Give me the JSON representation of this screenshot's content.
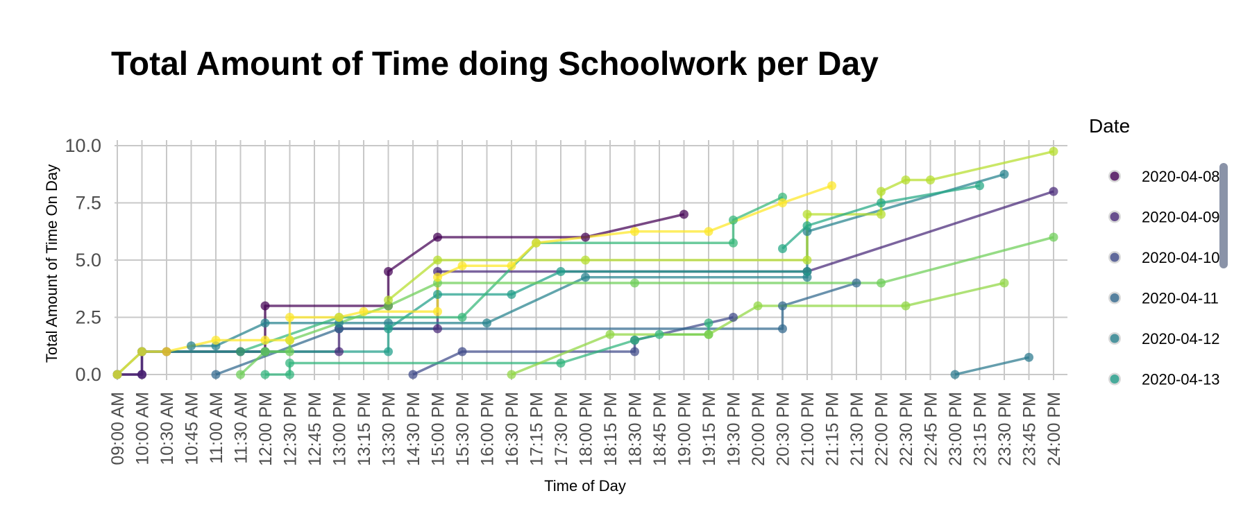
{
  "chart_data": {
    "type": "line",
    "title": "Total Amount of Time doing Schoolwork per Day",
    "xlabel": "Time of Day",
    "ylabel": "Total Amount of Time On Day",
    "ylim": [
      0,
      10
    ],
    "y_ticks": [
      "0.0",
      "2.5",
      "5.0",
      "7.5",
      "10.0"
    ],
    "grid": true,
    "categories": [
      "09:00 AM",
      "10:00 AM",
      "10:30 AM",
      "10:45 AM",
      "11:00 AM",
      "11:30 AM",
      "12:00 PM",
      "12:30 PM",
      "12:45 PM",
      "13:00 PM",
      "13:15 PM",
      "13:30 PM",
      "14:30 PM",
      "15:00 PM",
      "15:30 PM",
      "16:00 PM",
      "16:30 PM",
      "17:15 PM",
      "17:30 PM",
      "18:00 PM",
      "18:15 PM",
      "18:30 PM",
      "18:45 PM",
      "19:00 PM",
      "19:15 PM",
      "19:30 PM",
      "20:00 PM",
      "20:30 PM",
      "21:00 PM",
      "21:15 PM",
      "21:30 PM",
      "22:00 PM",
      "22:30 PM",
      "22:45 PM",
      "23:00 PM",
      "23:15 PM",
      "23:30 PM",
      "23:45 PM",
      "24:00 PM"
    ],
    "legend": {
      "title": "Date",
      "placement": "right",
      "entries": [
        "2020-04-08",
        "2020-04-09",
        "2020-04-10",
        "2020-04-11",
        "2020-04-12",
        "2020-04-13"
      ]
    },
    "series": [
      {
        "name": "2020-04-08",
        "color": "#440154",
        "points": [
          [
            "09:00 AM",
            0
          ],
          [
            "10:00 AM",
            0
          ],
          [
            "10:00 AM",
            1
          ],
          [
            "10:30 AM",
            1
          ],
          [
            "11:30 AM",
            1
          ],
          [
            "12:00 PM",
            1
          ],
          [
            "12:00 PM",
            3
          ],
          [
            "13:30 PM",
            3
          ],
          [
            "13:30 PM",
            4.5
          ],
          [
            "15:00 PM",
            6
          ],
          [
            "18:00 PM",
            6
          ],
          [
            "19:00 PM",
            7
          ]
        ]
      },
      {
        "name": "2020-04-09",
        "color": "#482878",
        "points": [
          [
            "09:00 AM",
            0
          ],
          [
            "10:00 AM",
            0
          ],
          [
            "10:00 AM",
            1
          ],
          [
            "13:00 PM",
            1
          ],
          [
            "13:00 PM",
            2
          ],
          [
            "15:00 PM",
            2
          ],
          [
            "15:00 PM",
            4.5
          ],
          [
            "21:00 PM",
            4.5
          ],
          [
            "24:00 PM",
            8
          ]
        ]
      },
      {
        "name": "2020-04-10",
        "color": "#3e4989",
        "points": [
          [
            "14:30 PM",
            0
          ],
          [
            "15:30 PM",
            1
          ],
          [
            "18:30 PM",
            1
          ],
          [
            "18:30 PM",
            1.5
          ],
          [
            "19:30 PM",
            2.5
          ]
        ]
      },
      {
        "name": "2020-04-11",
        "color": "#31688e",
        "points": [
          [
            "11:00 AM",
            0
          ],
          [
            "13:00 PM",
            2
          ],
          [
            "20:30 PM",
            2
          ],
          [
            "20:30 PM",
            3
          ],
          [
            "21:30 PM",
            4
          ]
        ]
      },
      {
        "name": "2020-04-12",
        "color": "#26828e",
        "points": [
          [
            "10:45 AM",
            1.25
          ],
          [
            "11:00 AM",
            1.25
          ],
          [
            "12:00 PM",
            2.25
          ],
          [
            "13:00 PM",
            2.25
          ],
          [
            "13:30 PM",
            2.25
          ],
          [
            "16:00 PM",
            2.25
          ],
          [
            "18:00 PM",
            4.25
          ],
          [
            "21:00 PM",
            4.25
          ],
          [
            "21:00 PM",
            6.25
          ],
          [
            "23:30 PM",
            8.75
          ]
        ]
      },
      {
        "name": "2020-04-13",
        "color": "#1f9e89",
        "points": [
          [
            "09:00 AM",
            0
          ],
          [
            "10:00 AM",
            1
          ],
          [
            "12:00 PM",
            1
          ],
          [
            "13:30 PM",
            1
          ],
          [
            "13:30 PM",
            2
          ],
          [
            "15:00 PM",
            3.5
          ],
          [
            "16:30 PM",
            3.5
          ],
          [
            "17:30 PM",
            4.5
          ],
          [
            "21:00 PM",
            4.5
          ]
        ]
      },
      {
        "name": "",
        "color": "#35b779",
        "points": [
          [
            "11:30 AM",
            1
          ],
          [
            "13:00 PM",
            2.5
          ],
          [
            "15:30 PM",
            2.5
          ],
          [
            "17:15 PM",
            5.75
          ],
          [
            "19:30 PM",
            5.75
          ],
          [
            "19:30 PM",
            6.75
          ],
          [
            "20:30 PM",
            7.75
          ]
        ]
      },
      {
        "name": "",
        "color": "#2fb47c",
        "points": [
          [
            "12:00 PM",
            0
          ],
          [
            "12:30 PM",
            0
          ],
          [
            "12:30 PM",
            0.5
          ],
          [
            "17:30 PM",
            0.5
          ],
          [
            "18:30 PM",
            1.5
          ],
          [
            "18:45 PM",
            1.75
          ],
          [
            "19:15 PM",
            1.75
          ],
          [
            "19:15 PM",
            2.25
          ]
        ]
      },
      {
        "name": "",
        "color": "#6ece58",
        "points": [
          [
            "11:30 AM",
            0
          ],
          [
            "12:00 PM",
            1
          ],
          [
            "12:30 PM",
            1
          ],
          [
            "12:30 PM",
            1.5
          ],
          [
            "13:30 PM",
            3
          ],
          [
            "15:00 PM",
            4
          ],
          [
            "18:30 PM",
            4
          ],
          [
            "22:00 PM",
            4
          ],
          [
            "24:00 PM",
            6
          ]
        ]
      },
      {
        "name": "",
        "color": "#90d743",
        "points": [
          [
            "16:30 PM",
            0
          ],
          [
            "18:15 PM",
            1.75
          ],
          [
            "19:15 PM",
            1.75
          ],
          [
            "20:00 PM",
            3
          ],
          [
            "22:30 PM",
            3
          ],
          [
            "23:30 PM",
            4
          ]
        ]
      },
      {
        "name": "",
        "color": "#b5de2b",
        "points": [
          [
            "13:30 PM",
            3.25
          ],
          [
            "15:00 PM",
            5
          ],
          [
            "18:00 PM",
            5
          ],
          [
            "21:00 PM",
            5
          ],
          [
            "21:00 PM",
            7
          ],
          [
            "22:00 PM",
            7
          ],
          [
            "22:00 PM",
            8
          ],
          [
            "22:30 PM",
            8.5
          ],
          [
            "22:45 PM",
            8.5
          ],
          [
            "24:00 PM",
            9.75
          ]
        ]
      },
      {
        "name": "",
        "color": "#fde725",
        "points": [
          [
            "09:00 AM",
            0
          ],
          [
            "10:00 AM",
            1
          ],
          [
            "10:30 AM",
            1
          ],
          [
            "11:00 AM",
            1.5
          ],
          [
            "12:00 PM",
            1.5
          ],
          [
            "12:30 PM",
            1.5
          ],
          [
            "12:30 PM",
            2.5
          ],
          [
            "13:00 PM",
            2.5
          ],
          [
            "13:15 PM",
            2.75
          ],
          [
            "15:00 PM",
            2.75
          ],
          [
            "15:00 PM",
            4.25
          ],
          [
            "15:30 PM",
            4.75
          ],
          [
            "16:30 PM",
            4.75
          ],
          [
            "17:15 PM",
            5.75
          ],
          [
            "18:30 PM",
            6.25
          ],
          [
            "19:15 PM",
            6.25
          ],
          [
            "20:30 PM",
            7.5
          ],
          [
            "21:15 PM",
            8.25
          ]
        ]
      },
      {
        "name": "",
        "color": "#2a788e",
        "points": [
          [
            "23:00 PM",
            0
          ],
          [
            "23:45 PM",
            0.75
          ]
        ]
      },
      {
        "name": "",
        "color": "#22a884",
        "points": [
          [
            "20:30 PM",
            5.5
          ],
          [
            "21:00 PM",
            6.5
          ],
          [
            "22:00 PM",
            7.5
          ],
          [
            "23:15 PM",
            8.25
          ]
        ]
      }
    ]
  }
}
